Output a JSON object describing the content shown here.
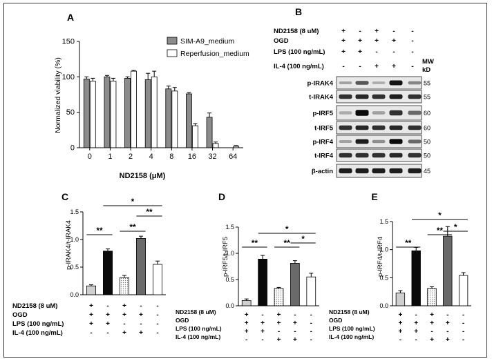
{
  "colors": {
    "gray": "#8c8c8c",
    "white": "#ffffff",
    "black": "#0a0a0a",
    "darkgray": "#6a6a6a",
    "lightgray": "#cfcfcf",
    "band": "#2a2a2a"
  },
  "panelA": {
    "label": "A",
    "chart_data": {
      "type": "bar",
      "categories": [
        "0",
        "1",
        "2",
        "4",
        "8",
        "16",
        "32",
        "64"
      ],
      "series": [
        {
          "name": "SIM-A9_medium",
          "values": [
            97,
            100,
            98,
            96,
            83,
            76,
            43,
            0
          ],
          "errors": [
            3,
            2,
            2,
            9,
            4,
            2,
            6,
            0
          ],
          "color": "#8c8c8c"
        },
        {
          "name": "Reperfusion_medium",
          "values": [
            94,
            94,
            108,
            100,
            80,
            31,
            6,
            2
          ],
          "errors": [
            4,
            4,
            1,
            8,
            5,
            3,
            2,
            1
          ],
          "color": "#ffffff"
        }
      ],
      "xlabel": "ND2158 (μM)",
      "ylabel": "Normalized viability (%)",
      "yticks": [
        "0",
        "50",
        "100",
        "150"
      ],
      "ylim": [
        0,
        150
      ],
      "legend": "top-right"
    }
  },
  "panelB": {
    "label": "B",
    "conditions": [
      {
        "label": "ND2158 (8 uM)",
        "signs": [
          "+",
          "-",
          "+",
          "-",
          "-"
        ]
      },
      {
        "label": "OGD",
        "signs": [
          "+",
          "+",
          "+",
          "+",
          "-"
        ]
      },
      {
        "label": "LPS (100 ng/mL)",
        "signs": [
          "+",
          "+",
          "-",
          "-",
          "-"
        ]
      },
      {
        "label": "IL-4 (100 ng/mL)",
        "signs": [
          "-",
          "-",
          "+",
          "+",
          "-"
        ]
      }
    ],
    "mw_header": "MW",
    "kd_header": "kD",
    "blots": [
      {
        "label": "p-IRAK4",
        "mw": "55",
        "intensity": [
          0.2,
          0.6,
          0.15,
          0.95,
          0.35
        ]
      },
      {
        "label": "t-IRAK4",
        "mw": "55",
        "intensity": [
          0.8,
          0.85,
          0.8,
          0.9,
          0.8
        ]
      },
      {
        "label": "p-IRF5",
        "mw": "60",
        "intensity": [
          0.15,
          1.0,
          0.2,
          0.8,
          0.5
        ]
      },
      {
        "label": "t-IRF5",
        "mw": "60",
        "intensity": [
          0.8,
          0.85,
          0.8,
          0.85,
          0.8
        ]
      },
      {
        "label": "p-IRF4",
        "mw": "50",
        "intensity": [
          0.2,
          0.9,
          0.3,
          1.0,
          0.5
        ]
      },
      {
        "label": "t-IRF4",
        "mw": "50",
        "intensity": [
          0.8,
          0.8,
          0.8,
          0.85,
          0.8
        ]
      },
      {
        "label": "β-actin",
        "mw": "45",
        "intensity": [
          0.9,
          0.9,
          0.9,
          0.9,
          0.9
        ]
      }
    ]
  },
  "quant_conditions": [
    {
      "label": "ND2158 (8 uM)",
      "signs": [
        "+",
        "-",
        "+",
        "-",
        "-"
      ]
    },
    {
      "label": "OGD",
      "signs": [
        "+",
        "+",
        "+",
        "+",
        "-"
      ]
    },
    {
      "label": "LPS (100 ng/mL)",
      "signs": [
        "+",
        "+",
        "-",
        "-",
        "-"
      ]
    },
    {
      "label": "IL-4 (100 ng/mL)",
      "signs": [
        "-",
        "-",
        "+",
        "+",
        "-"
      ]
    }
  ],
  "panelC": {
    "label": "C",
    "chart_data": {
      "type": "bar",
      "ylabel": "p-IRAK4/t-IRAK4",
      "yticks": [
        "0.0",
        "0.5",
        "1.0",
        "1.5"
      ],
      "ylim": [
        0,
        1.5
      ],
      "values": [
        0.16,
        0.79,
        0.31,
        1.02,
        0.55
      ],
      "errors": [
        0.02,
        0.04,
        0.04,
        0.04,
        0.06
      ],
      "significance": [
        {
          "from": 0,
          "to": 1,
          "text": "**"
        },
        {
          "from": 2,
          "to": 3,
          "text": "**"
        },
        {
          "from": 3,
          "to": 4,
          "text": "**"
        },
        {
          "from": 1,
          "to": 4,
          "text": "*"
        }
      ]
    }
  },
  "panelD": {
    "label": "D",
    "chart_data": {
      "type": "bar",
      "ylabel": "p-IRF5/t-IRF5",
      "yticks": [
        "0.0",
        "0.5",
        "1.0",
        "1.5"
      ],
      "ylim": [
        0,
        1.5
      ],
      "values": [
        0.1,
        0.89,
        0.33,
        0.81,
        0.55
      ],
      "errors": [
        0.03,
        0.07,
        0.02,
        0.05,
        0.07
      ],
      "significance": [
        {
          "from": 0,
          "to": 1,
          "text": "**"
        },
        {
          "from": 2,
          "to": 3,
          "text": "**"
        },
        {
          "from": 3,
          "to": 4,
          "text": "*"
        },
        {
          "from": 1,
          "to": 4,
          "text": "*"
        }
      ]
    }
  },
  "panelE": {
    "label": "E",
    "chart_data": {
      "type": "bar",
      "ylabel": "p-IRF4/t-IRF4",
      "yticks": [
        "0.0",
        "0.5",
        "1.0",
        "1.5"
      ],
      "ylim": [
        0,
        1.5
      ],
      "values": [
        0.23,
        0.98,
        0.31,
        1.24,
        0.54
      ],
      "errors": [
        0.04,
        0.06,
        0.03,
        0.17,
        0.05
      ],
      "significance": [
        {
          "from": 0,
          "to": 1,
          "text": "**"
        },
        {
          "from": 2,
          "to": 3,
          "text": "**"
        },
        {
          "from": 3,
          "to": 4,
          "text": "*"
        },
        {
          "from": 1,
          "to": 4,
          "text": "*"
        }
      ]
    }
  }
}
